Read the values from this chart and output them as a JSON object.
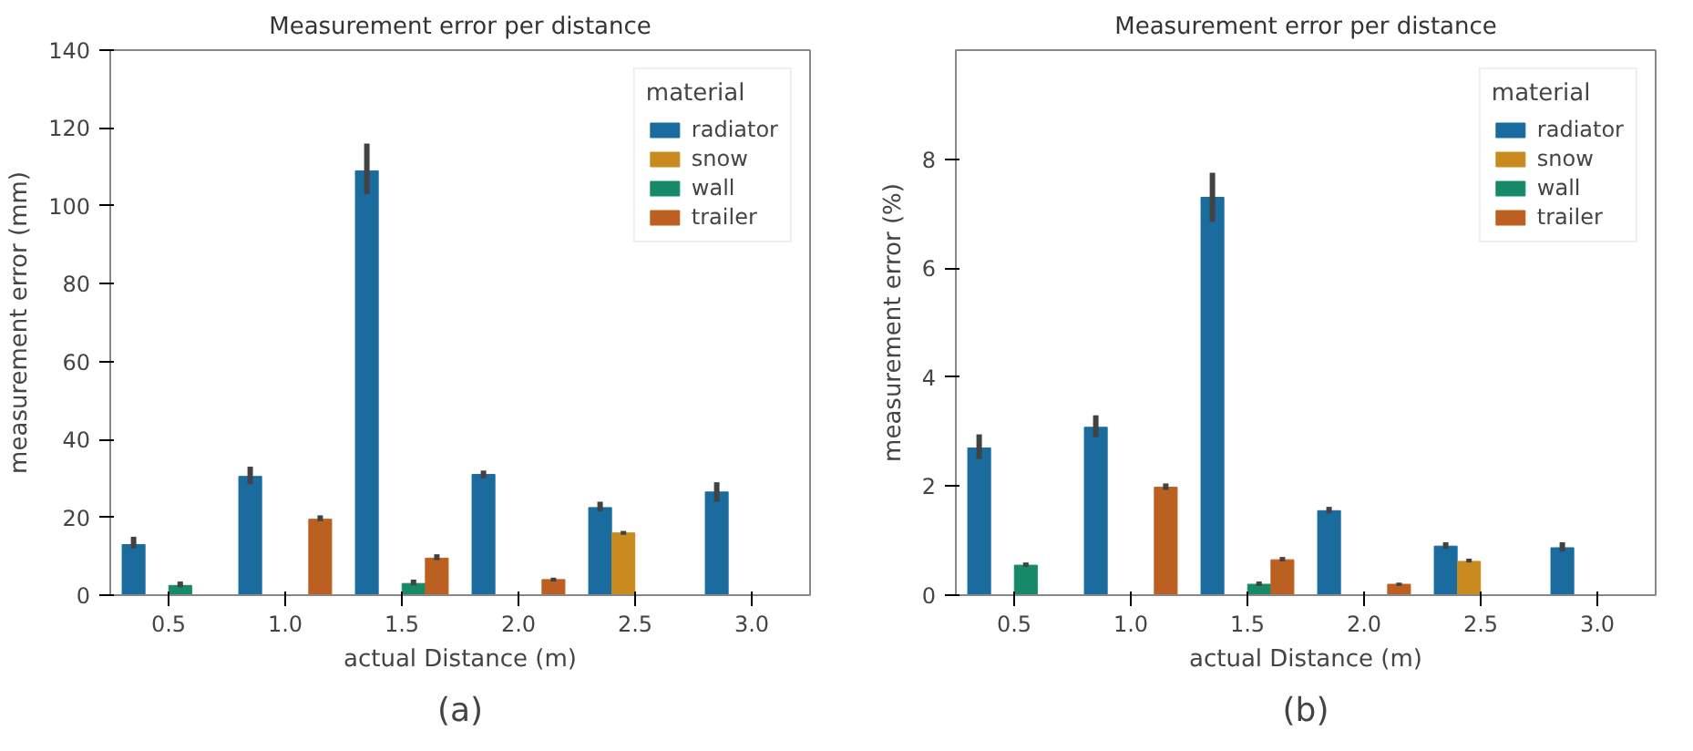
{
  "chart_data": [
    {
      "type": "bar",
      "title": "Measurement error per distance",
      "xlabel": "actual Distance (m)",
      "ylabel": "measurement error (mm)",
      "legend_title": "material",
      "annotations": [
        "(a)"
      ],
      "categories": [
        "0.5",
        "1.0",
        "1.5",
        "2.0",
        "2.5",
        "3.0"
      ],
      "series": [
        {
          "name": "radiator",
          "color": "#1a6b9e",
          "values": [
            13,
            30.5,
            109,
            31,
            22.5,
            26.5
          ],
          "errors": [
            [
              12,
              15
            ],
            [
              28.5,
              33
            ],
            [
              103,
              116
            ],
            [
              30,
              32
            ],
            [
              21.5,
              24
            ],
            [
              24,
              29
            ]
          ]
        },
        {
          "name": "snow",
          "color": "#c98a20",
          "values": [
            null,
            null,
            null,
            null,
            16,
            null
          ],
          "errors": [
            null,
            null,
            null,
            null,
            [
              15.5,
              16.5
            ],
            null
          ]
        },
        {
          "name": "wall",
          "color": "#168a68",
          "values": [
            2.5,
            null,
            3,
            null,
            null,
            null
          ],
          "errors": [
            [
              2,
              3.5
            ],
            null,
            [
              2.5,
              4
            ],
            null,
            null,
            null
          ]
        },
        {
          "name": "trailer",
          "color": "#bb6020",
          "values": [
            null,
            19.5,
            9.5,
            4,
            null,
            null
          ],
          "errors": [
            null,
            [
              19,
              20.5
            ],
            [
              9,
              10.5
            ],
            [
              3.5,
              4.5
            ],
            null,
            null
          ]
        }
      ],
      "ylim": [
        0,
        140
      ],
      "yticks": [
        0,
        20,
        40,
        60,
        80,
        100,
        120,
        140
      ],
      "grid": false,
      "legend": "top right"
    },
    {
      "type": "bar",
      "title": "Measurement error per distance",
      "xlabel": "actual Distance (m)",
      "ylabel": "measurement error (%)",
      "legend_title": "material",
      "annotations": [
        "(b)"
      ],
      "categories": [
        "0.5",
        "1.0",
        "1.5",
        "2.0",
        "2.5",
        "3.0"
      ],
      "series": [
        {
          "name": "radiator",
          "color": "#1a6b9e",
          "values": [
            2.7,
            3.08,
            7.3,
            1.55,
            0.9,
            0.87
          ],
          "errors": [
            [
              2.5,
              2.95
            ],
            [
              2.9,
              3.3
            ],
            [
              6.85,
              7.75
            ],
            [
              1.5,
              1.62
            ],
            [
              0.85,
              0.97
            ],
            [
              0.8,
              0.97
            ]
          ]
        },
        {
          "name": "snow",
          "color": "#c98a20",
          "values": [
            null,
            null,
            null,
            null,
            0.62,
            null
          ],
          "errors": [
            null,
            null,
            null,
            null,
            [
              0.6,
              0.67
            ],
            null
          ]
        },
        {
          "name": "wall",
          "color": "#168a68",
          "values": [
            0.55,
            null,
            0.2,
            null,
            null,
            null
          ],
          "errors": [
            [
              0.52,
              0.6
            ],
            null,
            [
              0.17,
              0.25
            ],
            null,
            null,
            null
          ]
        },
        {
          "name": "trailer",
          "color": "#bb6020",
          "values": [
            null,
            1.98,
            0.65,
            0.2,
            null,
            null
          ],
          "errors": [
            null,
            [
              1.93,
              2.05
            ],
            [
              0.62,
              0.7
            ],
            [
              0.17,
              0.23
            ],
            null,
            null
          ]
        }
      ],
      "ylim": [
        0,
        10
      ],
      "yticks": [
        0,
        2,
        4,
        6,
        8
      ],
      "grid": false,
      "legend": "top right"
    }
  ]
}
